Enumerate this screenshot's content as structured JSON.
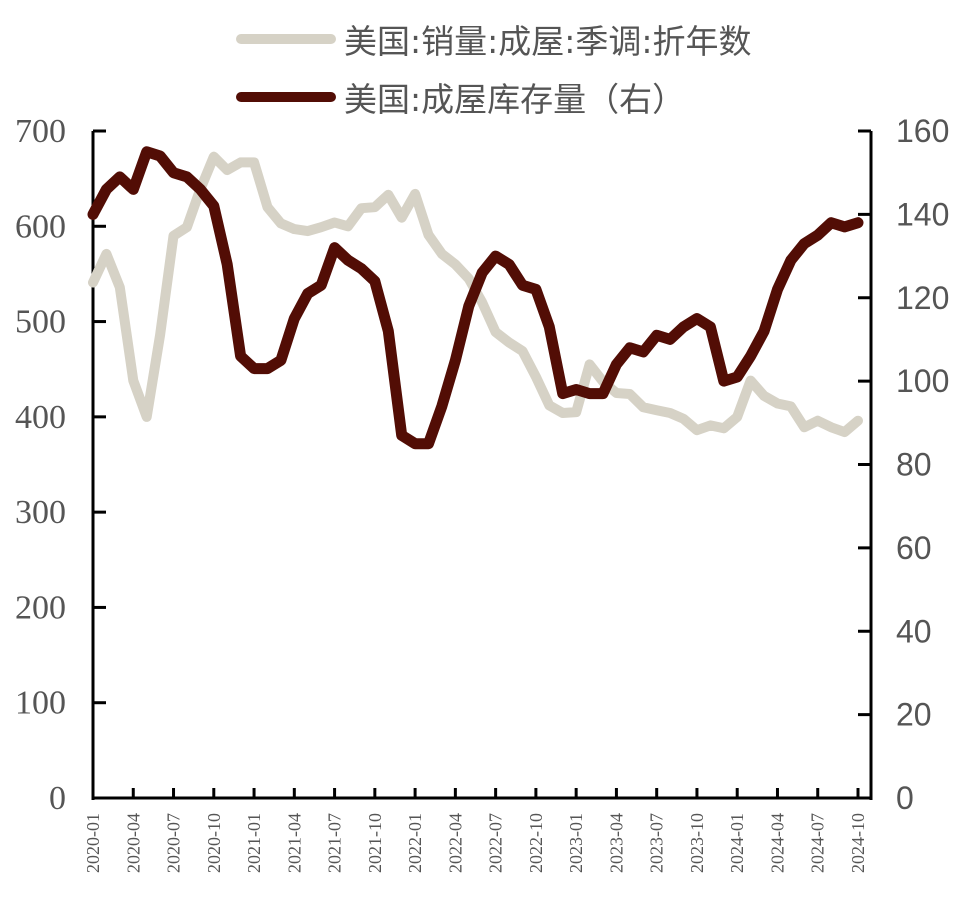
{
  "chart_data": {
    "type": "line",
    "title": "",
    "xlabel": "",
    "ylabel": "",
    "y2label": "",
    "legend_position": "top",
    "grid": false,
    "x": [
      "2020-01",
      "2020-02",
      "2020-03",
      "2020-04",
      "2020-05",
      "2020-06",
      "2020-07",
      "2020-08",
      "2020-09",
      "2020-10",
      "2020-11",
      "2020-12",
      "2021-01",
      "2021-02",
      "2021-03",
      "2021-04",
      "2021-05",
      "2021-06",
      "2021-07",
      "2021-08",
      "2021-09",
      "2021-10",
      "2021-11",
      "2021-12",
      "2022-01",
      "2022-02",
      "2022-03",
      "2022-04",
      "2022-05",
      "2022-06",
      "2022-07",
      "2022-08",
      "2022-09",
      "2022-10",
      "2022-11",
      "2022-12",
      "2023-01",
      "2023-02",
      "2023-03",
      "2023-04",
      "2023-05",
      "2023-06",
      "2023-07",
      "2023-08",
      "2023-09",
      "2023-10",
      "2023-11",
      "2023-12",
      "2024-01",
      "2024-02",
      "2024-03",
      "2024-04",
      "2024-05",
      "2024-06",
      "2024-07",
      "2024-08",
      "2024-09",
      "2024-10"
    ],
    "x_tick_labels": [
      "2020-01",
      "2020-04",
      "2020-07",
      "2020-10",
      "2021-01",
      "2021-04",
      "2021-07",
      "2021-10",
      "2022-01",
      "2022-04",
      "2022-07",
      "2022-10",
      "2023-01",
      "2023-04",
      "2023-07",
      "2023-10",
      "2024-01",
      "2024-04",
      "2024-07",
      "2024-10"
    ],
    "ylim": [
      0,
      700
    ],
    "y_ticks": [
      0,
      100,
      200,
      300,
      400,
      500,
      600,
      700
    ],
    "y2lim": [
      0,
      160
    ],
    "y2_ticks": [
      0,
      20,
      40,
      60,
      80,
      100,
      120,
      140,
      160
    ],
    "series": [
      {
        "name": "美国:销量:成屋:季调:折年数",
        "axis": "left",
        "color": "#d6d2c6",
        "values": [
          541,
          571,
          536,
          438,
          400,
          486,
          590,
          599,
          639,
          673,
          659,
          667,
          667,
          620,
          603,
          597,
          595,
          599,
          604,
          600,
          619,
          620,
          633,
          609,
          634,
          591,
          571,
          560,
          545,
          520,
          489,
          478,
          469,
          442,
          412,
          404,
          405,
          455,
          437,
          425,
          424,
          410,
          407,
          404,
          398,
          386,
          391,
          388,
          400,
          438,
          422,
          414,
          411,
          389,
          396,
          389,
          384,
          396
        ]
      },
      {
        "name": "美国:成屋库存量（右）",
        "axis": "right",
        "color": "#520d05",
        "values": [
          140,
          146,
          149,
          146,
          155,
          154,
          150,
          149,
          146,
          142,
          128,
          106,
          103,
          103,
          105,
          115,
          121,
          123,
          132,
          129,
          127,
          124,
          112,
          87,
          85,
          85,
          94,
          105,
          118,
          126,
          130,
          128,
          123,
          122,
          113,
          97,
          98,
          97,
          97,
          104,
          108,
          107,
          111,
          110,
          113,
          115,
          113,
          100,
          101,
          106,
          112,
          122,
          129,
          133,
          135,
          138,
          137,
          138
        ]
      }
    ]
  },
  "legend": {
    "items": [
      {
        "label": "美国:销量:成屋:季调:折年数",
        "color": "#d6d2c6"
      },
      {
        "label": "美国:成屋库存量（右）",
        "color": "#520d05"
      }
    ]
  }
}
